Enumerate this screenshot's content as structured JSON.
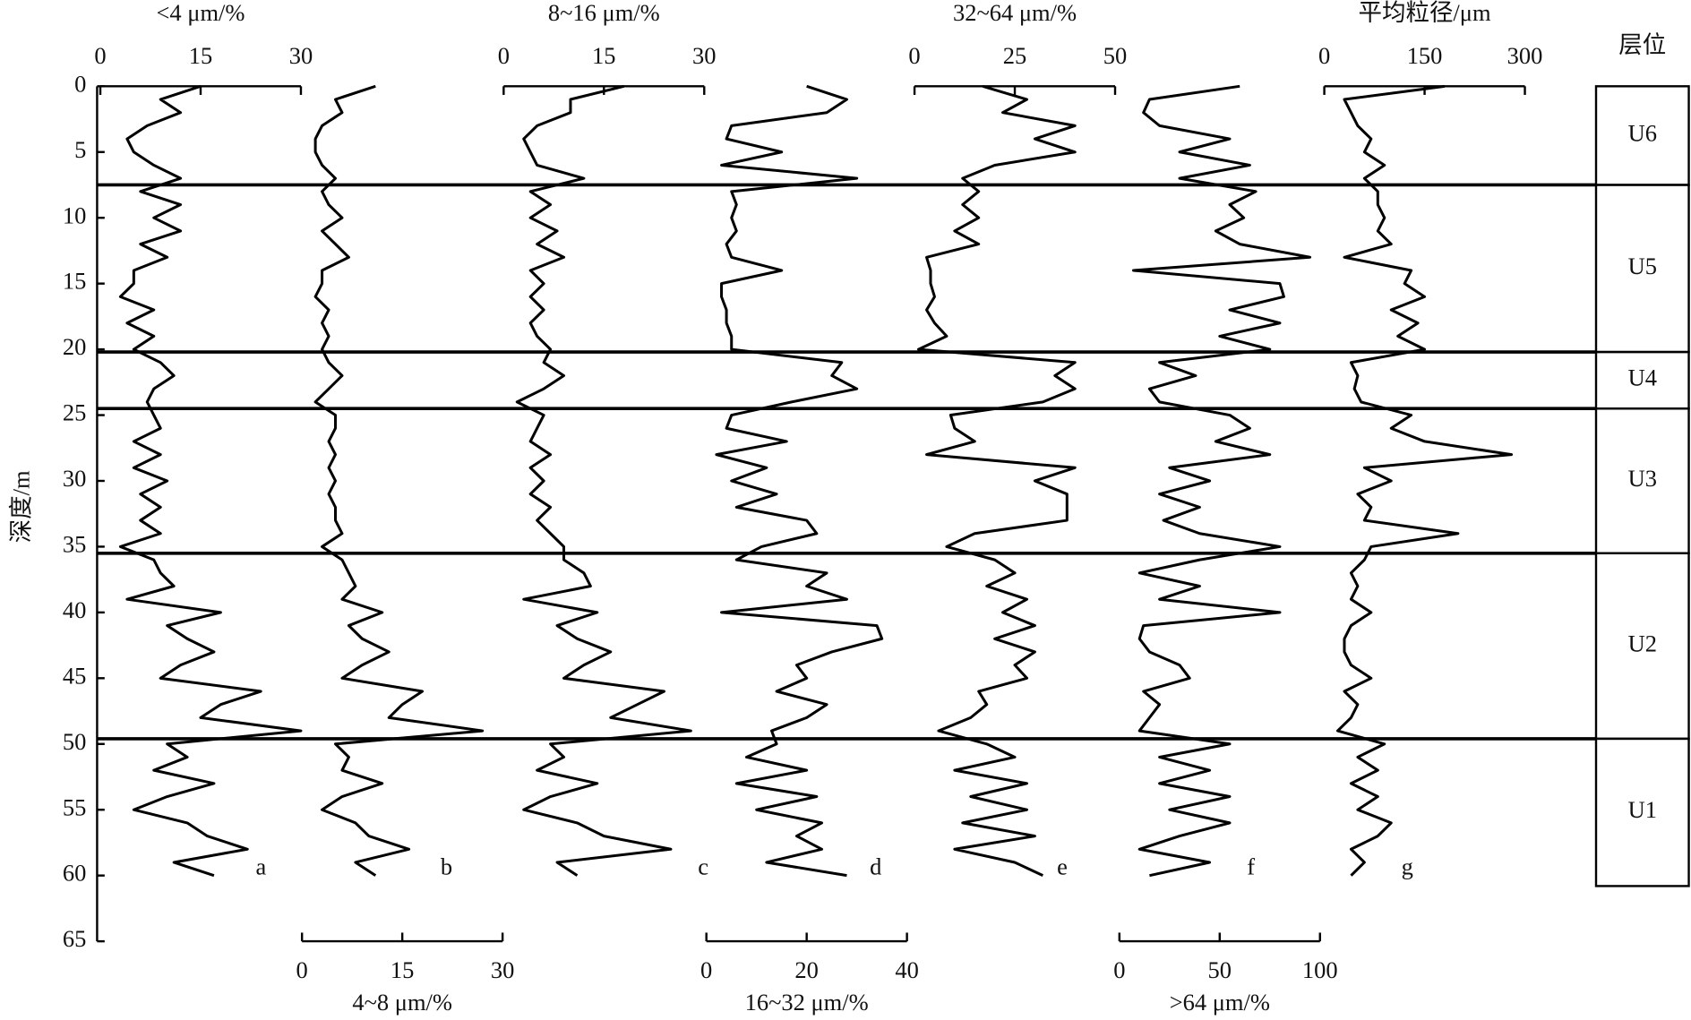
{
  "chart_data": {
    "type": "line",
    "ylabel": "深度/m",
    "ylim": [
      0,
      65
    ],
    "yticks": [
      0,
      5,
      10,
      15,
      20,
      25,
      30,
      35,
      40,
      45,
      50,
      55,
      60,
      65
    ],
    "depths": [
      0,
      1,
      2,
      3,
      4,
      5,
      6,
      7,
      8,
      9,
      10,
      11,
      12,
      13,
      14,
      15,
      16,
      17,
      18,
      19,
      20,
      21,
      22,
      23,
      24,
      25,
      26,
      27,
      28,
      29,
      30,
      31,
      32,
      33,
      34,
      35,
      36,
      37,
      38,
      39,
      40,
      41,
      42,
      43,
      44,
      45,
      46,
      47,
      48,
      49,
      50,
      51,
      52,
      53,
      54,
      55,
      56,
      57,
      58,
      59,
      60
    ],
    "panels": [
      {
        "label": "<4 μm/%",
        "letter": "a",
        "axis": "top",
        "xlim": [
          0,
          30
        ],
        "xticks": [
          0,
          15,
          30
        ],
        "values": [
          15,
          9,
          12,
          7,
          4,
          5,
          8,
          12,
          6,
          12,
          8,
          12,
          6,
          10,
          5,
          5,
          3,
          8,
          4,
          8,
          5,
          9,
          11,
          8,
          7,
          8,
          9,
          5,
          9,
          5,
          10,
          6,
          9,
          6,
          9,
          3,
          8,
          9,
          11,
          4,
          18,
          10,
          13,
          17,
          12,
          9,
          24,
          18,
          15,
          30,
          10,
          13,
          8,
          17,
          10,
          5,
          13,
          16,
          22,
          11,
          17
        ]
      },
      {
        "label": "4~8 μm/%",
        "letter": "b",
        "axis": "bottom",
        "xlim": [
          0,
          30
        ],
        "xticks": [
          0,
          15,
          30
        ],
        "values": [
          11,
          5,
          6,
          3,
          2,
          2,
          3,
          5,
          3,
          4,
          6,
          3,
          5,
          7,
          3,
          3,
          2,
          4,
          3,
          4,
          3,
          4,
          6,
          4,
          2,
          5,
          5,
          4,
          5,
          4,
          5,
          4,
          5,
          5,
          6,
          3,
          6,
          7,
          8,
          6,
          12,
          7,
          9,
          13,
          9,
          6,
          18,
          15,
          13,
          27,
          5,
          7,
          6,
          12,
          6,
          3,
          8,
          10,
          16,
          8,
          11
        ]
      },
      {
        "label": "8~16 μm/%",
        "letter": "c",
        "axis": "top",
        "xlim": [
          0,
          30
        ],
        "xticks": [
          0,
          15,
          30
        ],
        "values": [
          18,
          10,
          10,
          5,
          3,
          4,
          5,
          12,
          4,
          7,
          4,
          8,
          5,
          9,
          4,
          6,
          4,
          6,
          4,
          5,
          7,
          6,
          9,
          6,
          2,
          6,
          5,
          4,
          7,
          4,
          6,
          4,
          7,
          5,
          7,
          9,
          9,
          12,
          13,
          3,
          14,
          8,
          11,
          16,
          12,
          9,
          24,
          20,
          16,
          28,
          7,
          9,
          5,
          14,
          7,
          3,
          11,
          15,
          25,
          8,
          11
        ]
      },
      {
        "label": "16~32 μm/%",
        "letter": "d",
        "axis": "bottom",
        "xlim": [
          0,
          40
        ],
        "xticks": [
          0,
          20,
          40
        ],
        "values": [
          20,
          28,
          24,
          5,
          4,
          15,
          3,
          30,
          5,
          6,
          5,
          6,
          4,
          5,
          15,
          3,
          3,
          4,
          4,
          5,
          5,
          27,
          25,
          30,
          17,
          5,
          4,
          16,
          2,
          12,
          5,
          14,
          6,
          20,
          22,
          11,
          6,
          24,
          20,
          28,
          3,
          34,
          35,
          25,
          18,
          20,
          14,
          24,
          20,
          13,
          14,
          8,
          20,
          6,
          22,
          10,
          23,
          18,
          23,
          12,
          28
        ]
      },
      {
        "label": "32~64 μm/%",
        "letter": "e",
        "axis": "top",
        "xlim": [
          0,
          50
        ],
        "xticks": [
          0,
          25,
          50
        ],
        "values": [
          17,
          28,
          22,
          40,
          30,
          40,
          20,
          12,
          16,
          12,
          16,
          10,
          16,
          3,
          4,
          4,
          5,
          3,
          5,
          8,
          1,
          40,
          35,
          40,
          32,
          9,
          10,
          15,
          3,
          40,
          30,
          38,
          38,
          38,
          15,
          8,
          20,
          25,
          18,
          28,
          22,
          30,
          20,
          30,
          25,
          28,
          16,
          18,
          14,
          6,
          18,
          25,
          10,
          28,
          14,
          28,
          12,
          30,
          10,
          25,
          32
        ]
      },
      {
        "label": ">64 μm/%",
        "letter": "f",
        "axis": "bottom",
        "xlim": [
          0,
          100
        ],
        "xticks": [
          0,
          50,
          100
        ],
        "values": [
          60,
          15,
          12,
          20,
          55,
          30,
          65,
          30,
          68,
          55,
          62,
          48,
          60,
          95,
          7,
          80,
          82,
          55,
          80,
          50,
          75,
          20,
          38,
          15,
          20,
          55,
          65,
          48,
          75,
          25,
          45,
          20,
          40,
          22,
          40,
          80,
          40,
          10,
          40,
          20,
          80,
          12,
          10,
          15,
          30,
          35,
          12,
          20,
          15,
          10,
          55,
          20,
          45,
          20,
          55,
          25,
          55,
          30,
          10,
          45,
          15
        ]
      },
      {
        "label": "平均粒径/μm",
        "letter": "g",
        "axis": "top",
        "xlim": [
          0,
          300
        ],
        "xticks": [
          0,
          150,
          300
        ],
        "values": [
          180,
          30,
          40,
          50,
          70,
          60,
          90,
          60,
          80,
          80,
          90,
          80,
          100,
          30,
          130,
          120,
          150,
          100,
          140,
          110,
          150,
          40,
          50,
          45,
          55,
          130,
          100,
          150,
          280,
          60,
          100,
          50,
          70,
          60,
          200,
          70,
          60,
          40,
          50,
          40,
          70,
          40,
          30,
          30,
          40,
          70,
          30,
          50,
          40,
          20,
          90,
          50,
          80,
          40,
          80,
          50,
          100,
          80,
          40,
          60,
          40
        ]
      }
    ],
    "units_title": "层位",
    "units": [
      {
        "name": "U6",
        "top": 0,
        "bottom": 7.5
      },
      {
        "name": "U5",
        "top": 7.5,
        "bottom": 20.2
      },
      {
        "name": "U4",
        "top": 20.2,
        "bottom": 24.5
      },
      {
        "name": "U3",
        "top": 24.5,
        "bottom": 35.5
      },
      {
        "name": "U2",
        "top": 35.5,
        "bottom": 49.6
      },
      {
        "name": "U1",
        "top": 49.6,
        "bottom": 60.8
      }
    ]
  }
}
